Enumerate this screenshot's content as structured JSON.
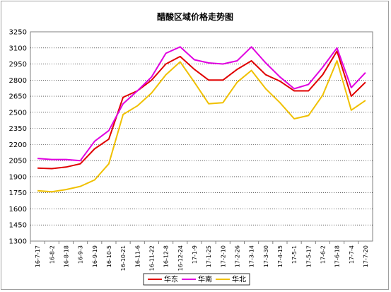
{
  "chart_data": {
    "type": "line",
    "title": "醋酸区域价格走势图",
    "xlabel": "",
    "ylabel": "",
    "ylim": [
      1300,
      3250
    ],
    "yticks": [
      3250,
      3100,
      2950,
      2800,
      2650,
      2500,
      2350,
      2200,
      2050,
      1900,
      1750,
      1600,
      1450,
      1300
    ],
    "grid": true,
    "legend_position": "bottom",
    "categories": [
      "16-7-17",
      "16-8-2",
      "16-8-18",
      "16-9-3",
      "16-9-19",
      "16-10-5",
      "16-10-21",
      "16-11-6",
      "16-11-22",
      "16-12-8",
      "16-12-24",
      "17-1-9",
      "17-1-25",
      "17-2-10",
      "17-2-26",
      "17-3-14",
      "17-3-30",
      "17-4-15",
      "17-5-1",
      "17-5-17",
      "17-6-2",
      "17-6-18",
      "17-7-4",
      "17-7-20"
    ],
    "series": [
      {
        "name": "华东",
        "color": "#e00000",
        "values": [
          1980,
          1975,
          1990,
          2020,
          2160,
          2250,
          2640,
          2700,
          2800,
          2950,
          3020,
          2900,
          2800,
          2800,
          2900,
          2980,
          2850,
          2790,
          2700,
          2700,
          2850,
          3070,
          2650,
          2780
        ]
      },
      {
        "name": "华南",
        "color": "#e000e0",
        "values": [
          2070,
          2060,
          2060,
          2050,
          2230,
          2330,
          2580,
          2700,
          2830,
          3050,
          3110,
          2990,
          2960,
          2950,
          2980,
          3110,
          2960,
          2830,
          2720,
          2760,
          2920,
          3100,
          2730,
          2870
        ]
      },
      {
        "name": "华北",
        "color": "#f0c000",
        "values": [
          1770,
          1760,
          1780,
          1810,
          1870,
          2020,
          2480,
          2560,
          2680,
          2850,
          2970,
          2780,
          2580,
          2590,
          2780,
          2890,
          2720,
          2590,
          2440,
          2470,
          2660,
          2980,
          2520,
          2610
        ]
      }
    ]
  }
}
